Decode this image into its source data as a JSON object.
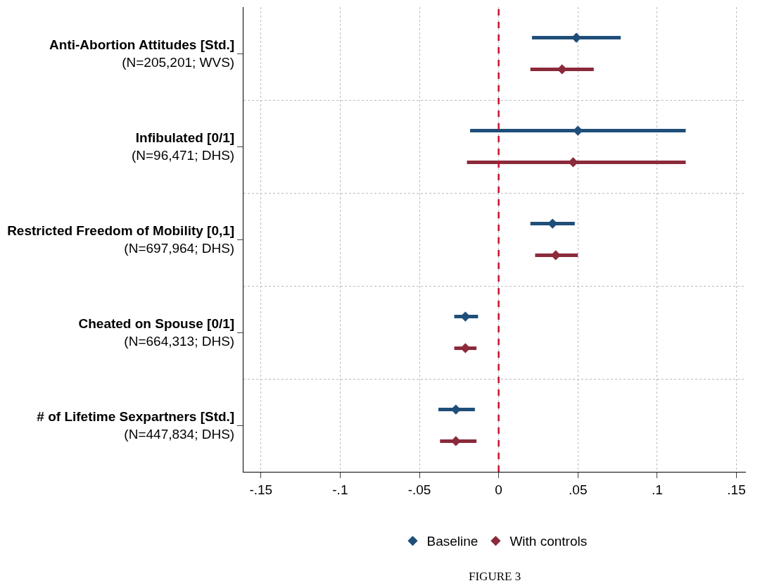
{
  "chart_data": {
    "type": "scatter",
    "orientation": "horizontal",
    "categories": [
      "Anti-Abortion Attitudes [Std.]\n(N=205,201; WVS)",
      "Infibulated [0/1]\n(N=96,471; DHS)",
      "Restricted Freedom of Mobility [0,1]\n(N=697,964; DHS)",
      "Cheated on Spouse [0/1]\n(N=664,313; DHS)",
      "# of Lifetime Sexpartners [Std.]\n(N=447,834; DHS)"
    ],
    "series": [
      {
        "name": "Baseline",
        "color": "#1f4e79",
        "values": [
          0.049,
          0.05,
          0.034,
          -0.021,
          -0.027
        ],
        "errors": [
          [
            0.021,
            0.077
          ],
          [
            -0.018,
            0.118
          ],
          [
            0.02,
            0.048
          ],
          [
            -0.028,
            -0.013
          ],
          [
            -0.038,
            -0.015
          ]
        ]
      },
      {
        "name": "With controls",
        "color": "#8b2a3a",
        "values": [
          0.04,
          0.047,
          0.036,
          -0.021,
          -0.027
        ],
        "errors": [
          [
            0.02,
            0.06
          ],
          [
            -0.02,
            0.118
          ],
          [
            0.023,
            0.05
          ],
          [
            -0.028,
            -0.014
          ],
          [
            -0.037,
            -0.014
          ]
        ]
      }
    ],
    "xlim": [
      -0.161,
      0.156
    ],
    "xticks": [
      {
        "value": -0.15,
        "label": "-.15"
      },
      {
        "value": -0.1,
        "label": "-.1"
      },
      {
        "value": -0.05,
        "label": "-.05"
      },
      0,
      {
        "value": 0.05,
        "label": ".05"
      },
      {
        "value": 0.1,
        "label": ".1"
      },
      {
        "value": 0.15,
        "label": ".15"
      }
    ],
    "ref_lines": [
      {
        "axis": "x",
        "value": 0,
        "color": "#c8102e",
        "line_style": "dashed"
      }
    ],
    "grid": true,
    "legend": "bottom",
    "marker": "diamond",
    "annotations": [
      "FIGURE 3"
    ]
  }
}
